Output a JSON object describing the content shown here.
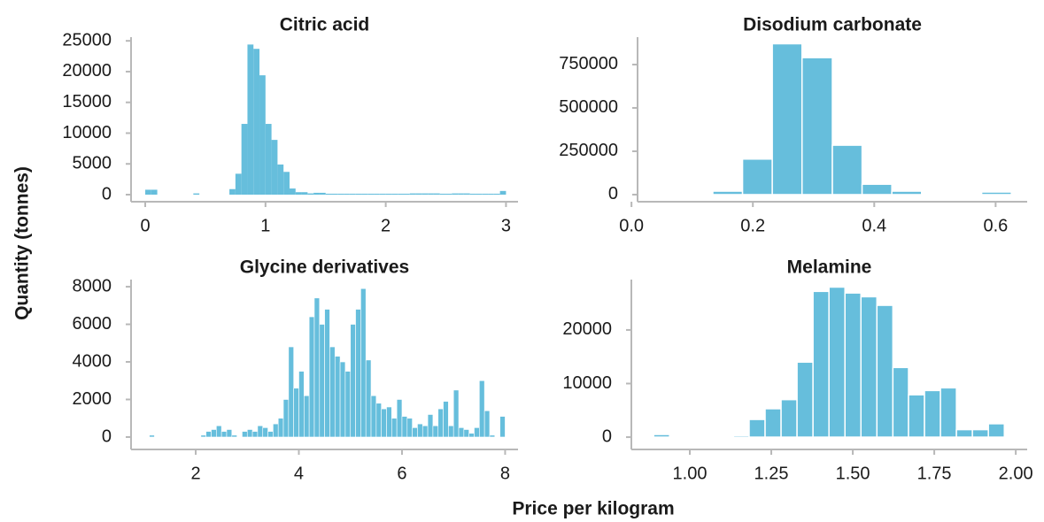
{
  "y_label": "Quantity (tonnes)",
  "x_label": "Price per kilogram",
  "chart_data": [
    {
      "type": "histogram",
      "title": "Citric acid",
      "color": "#66bedc",
      "bins": [
        0,
        0.05,
        0.1,
        0.15,
        0.2,
        0.25,
        0.3,
        0.35,
        0.4,
        0.45,
        0.5,
        0.55,
        0.6,
        0.65,
        0.7,
        0.75,
        0.8,
        0.85,
        0.9,
        0.95,
        1,
        1.05,
        1.1,
        1.15,
        1.2,
        1.25,
        1.3,
        1.35,
        1.4,
        1.45,
        1.5,
        1.55,
        1.6,
        1.65,
        1.7,
        1.75,
        1.8,
        1.85,
        1.9,
        1.95,
        2,
        2.05,
        2.1,
        2.15,
        2.2,
        2.25,
        2.3,
        2.35,
        2.4,
        2.45,
        2.5,
        2.55,
        2.6,
        2.65,
        2.7,
        2.75,
        2.8,
        2.85,
        2.9,
        2.95,
        3
      ],
      "counts": [
        800,
        800,
        0,
        0,
        0,
        0,
        0,
        0,
        200,
        0,
        0,
        0,
        0,
        0,
        900,
        3400,
        11500,
        24400,
        23700,
        19400,
        11500,
        8900,
        4900,
        3700,
        1000,
        400,
        400,
        200,
        300,
        300,
        150,
        150,
        150,
        150,
        150,
        150,
        150,
        150,
        150,
        150,
        150,
        150,
        150,
        150,
        200,
        200,
        200,
        200,
        200,
        150,
        150,
        200,
        200,
        200,
        150,
        150,
        150,
        150,
        150,
        600
      ],
      "xlim": [
        -0.118,
        3.1
      ],
      "ylim": [
        -1150,
        25600
      ],
      "xticks": [
        0,
        1,
        2,
        3
      ],
      "yticks": [
        0,
        5000,
        10000,
        15000,
        20000,
        25000
      ]
    },
    {
      "type": "histogram",
      "title": "Disodium carbonate",
      "color": "#66bedc",
      "bins": [
        0.035,
        0.084,
        0.134,
        0.183,
        0.232,
        0.281,
        0.331,
        0.38,
        0.429,
        0.478,
        0.528,
        0.577,
        0.626
      ],
      "counts": [
        5000,
        0,
        20000,
        205000,
        870000,
        790000,
        285000,
        60000,
        20000,
        5000,
        5000,
        15000
      ],
      "xlim": [
        0.01,
        0.652
      ],
      "ylim": [
        -41000,
        908000
      ],
      "xticks": [
        {
          "value": 0,
          "label": "0.0"
        },
        0.2,
        0.4,
        0.6
      ],
      "yticks": [
        0,
        250000,
        500000,
        750000
      ]
    },
    {
      "type": "histogram",
      "title": "Glycine derivatives",
      "color": "#66bedc",
      "bins": [
        1,
        1.1,
        1.2,
        1.3,
        1.4,
        1.5,
        1.6,
        1.7,
        1.8,
        1.9,
        2,
        2.1,
        2.2,
        2.3,
        2.4,
        2.5,
        2.6,
        2.7,
        2.8,
        2.9,
        3,
        3.1,
        3.2,
        3.3,
        3.4,
        3.5,
        3.6,
        3.7,
        3.8,
        3.9,
        4,
        4.1,
        4.2,
        4.3,
        4.4,
        4.5,
        4.6,
        4.7,
        4.8,
        4.9,
        5,
        5.1,
        5.2,
        5.3,
        5.4,
        5.5,
        5.6,
        5.7,
        5.8,
        5.9,
        6,
        6.1,
        6.2,
        6.3,
        6.4,
        6.5,
        6.6,
        6.7,
        6.8,
        6.9,
        7,
        7.1,
        7.2,
        7.3,
        7.4,
        7.5,
        7.6,
        7.7,
        7.8,
        7.9,
        8
      ],
      "counts": [
        0,
        100,
        0,
        0,
        0,
        0,
        0,
        0,
        0,
        0,
        0,
        100,
        300,
        400,
        600,
        300,
        400,
        100,
        0,
        300,
        400,
        300,
        600,
        500,
        300,
        700,
        1000,
        2000,
        4800,
        2600,
        3500,
        2200,
        6400,
        7400,
        6000,
        6800,
        4800,
        4300,
        4000,
        3500,
        6000,
        6800,
        7900,
        4100,
        2200,
        1800,
        1500,
        1600,
        1000,
        2000,
        1100,
        1000,
        500,
        700,
        600,
        1200,
        600,
        1500,
        1900,
        600,
        2500,
        500,
        400,
        200,
        500,
        3000,
        1400,
        100,
        0,
        1100
      ],
      "xlim": [
        0.746,
        8.25
      ],
      "ylim": [
        -660,
        8380
      ],
      "xticks": [
        2,
        4,
        6,
        8
      ],
      "yticks": [
        0,
        2000,
        4000,
        6000,
        8000
      ]
    },
    {
      "type": "histogram",
      "title": "Melamine",
      "color": "#66bedc",
      "bins": [
        0.889,
        0.938,
        0.987,
        1.036,
        1.085,
        1.134,
        1.182,
        1.231,
        1.28,
        1.329,
        1.378,
        1.427,
        1.476,
        1.525,
        1.574,
        1.623,
        1.671,
        1.72,
        1.769,
        1.818,
        1.867,
        1.916,
        1.965
      ],
      "counts": [
        500,
        0,
        0,
        0,
        0,
        300,
        3300,
        5300,
        7000,
        14000,
        27200,
        28000,
        26900,
        26200,
        24600,
        13000,
        7900,
        8700,
        9200,
        1400,
        1400,
        2500
      ],
      "xlim": [
        0.8207,
        2.035
      ],
      "ylim": [
        -2300,
        29400
      ],
      "xticks": [
        {
          "value": 1,
          "label": "1.00"
        },
        {
          "value": 1.25,
          "label": "1.25"
        },
        {
          "value": 1.5,
          "label": "1.50"
        },
        {
          "value": 1.75,
          "label": "1.75"
        },
        {
          "value": 2,
          "label": "2.00"
        }
      ],
      "yticks": [
        0,
        10000,
        20000
      ]
    }
  ]
}
